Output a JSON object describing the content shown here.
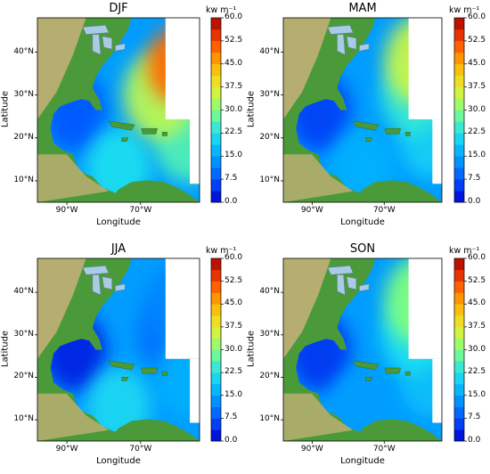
{
  "figure": {
    "colorbar_unit": "kw m",
    "colorbar_unit_exponent": "−1",
    "xlabel": "Longitude",
    "ylabel": "Latitude"
  },
  "colors": {
    "land_low": "#4a9a3a",
    "land_mid": "#c9b27a",
    "land_high": "#e8d9b5",
    "lake": "#a9cbe6",
    "blank": "#ffffff"
  },
  "chart_data": [
    {
      "type": "heatmap",
      "title": "DJF",
      "xlabel": "Longitude",
      "ylabel": "Latitude",
      "xticks": [
        "90°W",
        "70°W"
      ],
      "yticks": [
        "10°N",
        "20°N",
        "30°N",
        "40°N"
      ],
      "xlim": [
        -98,
        -54
      ],
      "ylim": [
        5,
        48
      ],
      "colorbar": {
        "label": "kw m⁻¹",
        "ticks": [
          "0.0",
          "7.5",
          "15.0",
          "22.5",
          "30.0",
          "37.5",
          "45.0",
          "52.5",
          "60.0"
        ],
        "min": 0,
        "max": 60
      },
      "field_features": [
        {
          "lon": -60,
          "lat": 37,
          "value": 50
        },
        {
          "lon": -65,
          "lat": 30,
          "value": 34
        },
        {
          "lon": -76,
          "lat": 13,
          "value": 22
        },
        {
          "lon": -57,
          "lat": 20,
          "value": 26
        },
        {
          "lon": -88,
          "lat": 26,
          "value": 8
        }
      ]
    },
    {
      "type": "heatmap",
      "title": "MAM",
      "xlabel": "Longitude",
      "ylabel": "Latitude",
      "xticks": [
        "90°W",
        "70°W"
      ],
      "yticks": [
        "10°N",
        "20°N",
        "30°N",
        "40°N"
      ],
      "xlim": [
        -98,
        -54
      ],
      "ylim": [
        5,
        48
      ],
      "colorbar": {
        "label": "kw m⁻¹",
        "ticks": [
          "0.0",
          "7.5",
          "15.0",
          "22.5",
          "30.0",
          "37.5",
          "45.0",
          "52.5",
          "60.0"
        ],
        "min": 0,
        "max": 60
      },
      "field_features": [
        {
          "lon": -60,
          "lat": 38,
          "value": 35
        },
        {
          "lon": -62,
          "lat": 30,
          "value": 24
        },
        {
          "lon": -76,
          "lat": 13,
          "value": 16
        },
        {
          "lon": -57,
          "lat": 20,
          "value": 20
        },
        {
          "lon": -88,
          "lat": 26,
          "value": 6
        }
      ]
    },
    {
      "type": "heatmap",
      "title": "JJA",
      "xlabel": "Longitude",
      "ylabel": "Latitude",
      "xticks": [
        "90°W",
        "70°W"
      ],
      "yticks": [
        "10°N",
        "20°N",
        "30°N",
        "40°N"
      ],
      "xlim": [
        -98,
        -54
      ],
      "ylim": [
        5,
        48
      ],
      "colorbar": {
        "label": "kw m⁻¹",
        "ticks": [
          "0.0",
          "7.5",
          "15.0",
          "22.5",
          "30.0",
          "37.5",
          "45.0",
          "52.5",
          "60.0"
        ],
        "min": 0,
        "max": 60
      },
      "field_features": [
        {
          "lon": -60,
          "lat": 37,
          "value": 12
        },
        {
          "lon": -62,
          "lat": 30,
          "value": 10
        },
        {
          "lon": -76,
          "lat": 13,
          "value": 21
        },
        {
          "lon": -57,
          "lat": 20,
          "value": 16
        },
        {
          "lon": -88,
          "lat": 26,
          "value": 3
        }
      ]
    },
    {
      "type": "heatmap",
      "title": "SON",
      "xlabel": "Longitude",
      "ylabel": "Latitude",
      "xticks": [
        "90°W",
        "70°W"
      ],
      "yticks": [
        "10°N",
        "20°N",
        "30°N",
        "40°N"
      ],
      "xlim": [
        -98,
        -54
      ],
      "ylim": [
        5,
        48
      ],
      "colorbar": {
        "label": "kw m⁻¹",
        "ticks": [
          "0.0",
          "7.5",
          "15.0",
          "22.5",
          "30.0",
          "37.5",
          "45.0",
          "52.5",
          "60.0"
        ],
        "min": 0,
        "max": 60
      },
      "field_features": [
        {
          "lon": -60,
          "lat": 38,
          "value": 30
        },
        {
          "lon": -62,
          "lat": 30,
          "value": 22
        },
        {
          "lon": -76,
          "lat": 13,
          "value": 14
        },
        {
          "lon": -57,
          "lat": 20,
          "value": 18
        },
        {
          "lon": -88,
          "lat": 26,
          "value": 5
        }
      ]
    }
  ]
}
